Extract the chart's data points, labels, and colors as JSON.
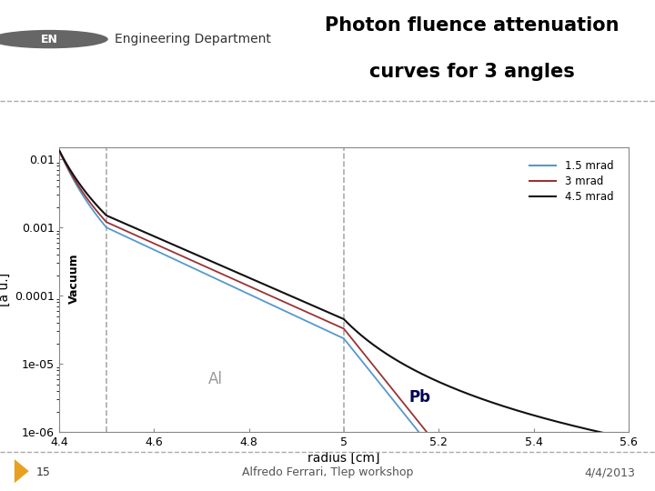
{
  "title_line1": "Photon fluence attenuation",
  "title_line2": "curves for 3 angles",
  "xlabel": "radius [cm]",
  "ylabel": "[a u.]",
  "xlim": [
    4.4,
    5.6
  ],
  "xticks": [
    4.4,
    4.6,
    4.8,
    5.0,
    5.2,
    5.4,
    5.6
  ],
  "xtick_labels": [
    "4.4",
    "4.6",
    "4.8",
    "5",
    "5.2",
    "5.4",
    "5.6"
  ],
  "yticks": [
    1e-06,
    1e-05,
    0.0001,
    0.001,
    0.01
  ],
  "ytick_labels": [
    "1e-06",
    "1e-05",
    "0.0001",
    "0.001",
    "0.01"
  ],
  "vline1": 4.5,
  "vline2": 5.0,
  "color_15mrad": "#5599cc",
  "color_3mrad": "#993333",
  "color_45mrad": "#111111",
  "label_15mrad": "1.5 mrad",
  "label_3mrad": "3 mrad",
  "label_45mrad": "4.5 mrad",
  "text_vacuum": "Vacuum",
  "text_al": "Al",
  "text_pb": "Pb",
  "text_al_color": "#999999",
  "text_pb_color": "#000055",
  "bg_color": "#ffffff",
  "footer_slide": "15",
  "footer_center": "Alfredo Ferrari, Tlep workshop",
  "footer_right": "4/4/2013",
  "header_logo_text": "EN",
  "header_dept": "Engineering Department",
  "logo_color": "#666666",
  "header_line_color": "#aaaaaa",
  "footer_line_color": "#aaaaaa",
  "triangle_color": "#e8a020",
  "spine_color": "#888888",
  "vline_color": "#aaaaaa"
}
